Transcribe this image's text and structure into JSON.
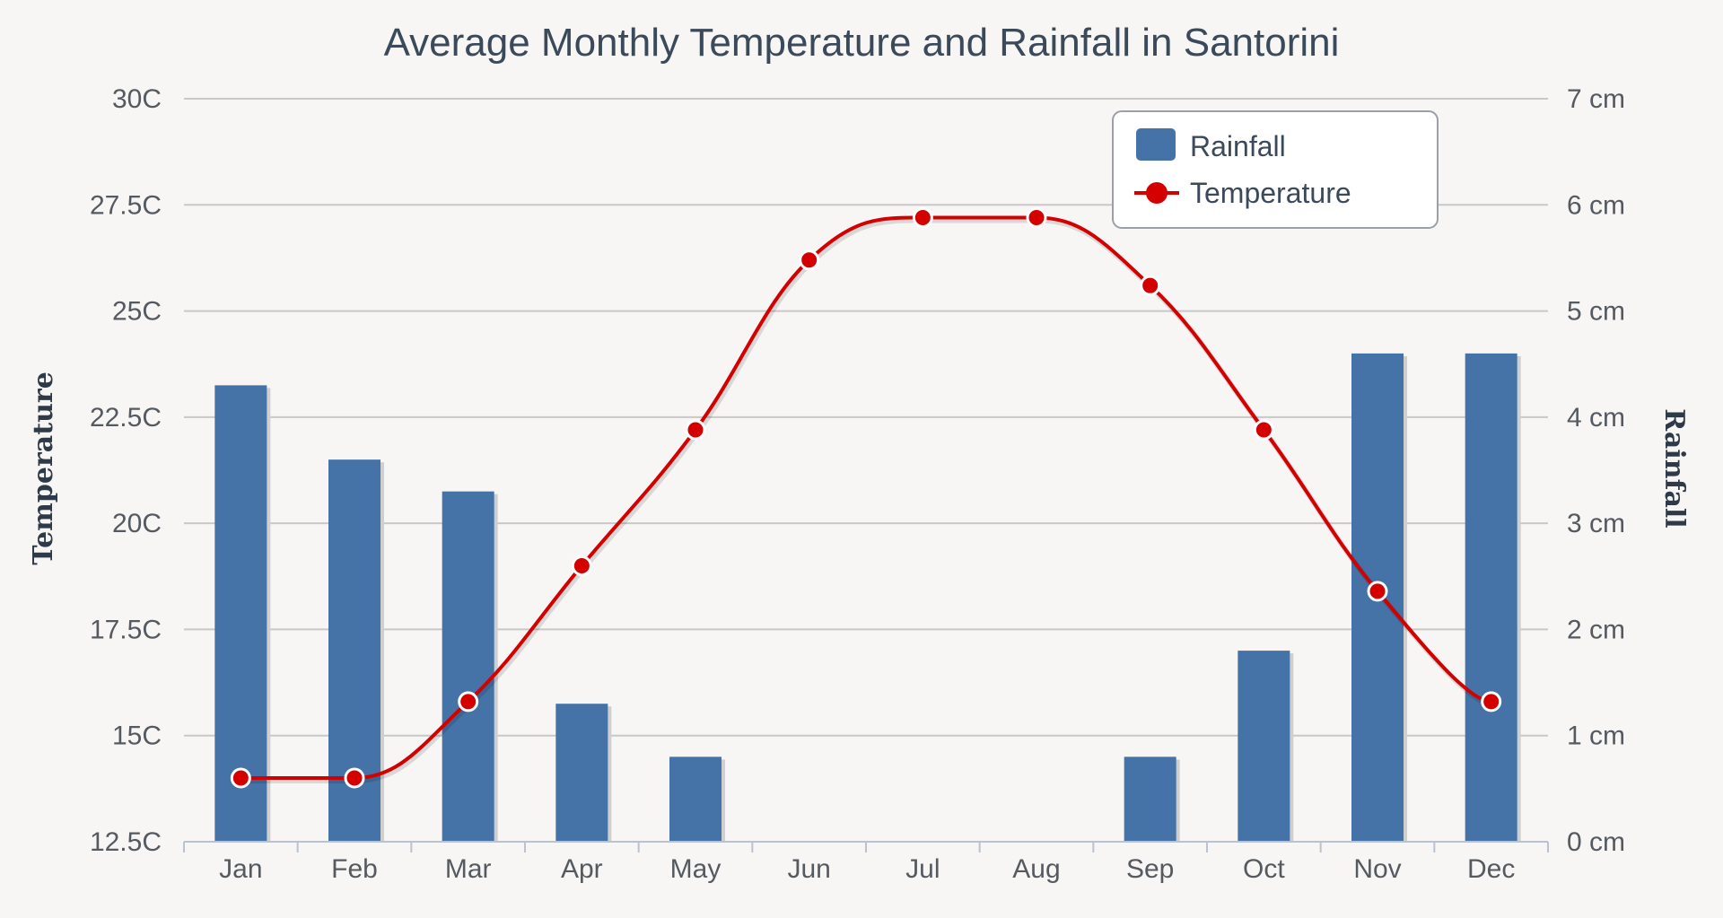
{
  "chart_data": {
    "type": "bar+line",
    "title": "Average Monthly Temperature and Rainfall in Santorini",
    "categories": [
      "Jan",
      "Feb",
      "Mar",
      "Apr",
      "May",
      "Jun",
      "Jul",
      "Aug",
      "Sep",
      "Oct",
      "Nov",
      "Dec"
    ],
    "series": [
      {
        "name": "Rainfall",
        "type": "bar",
        "axis": "right",
        "color": "#4572a7",
        "values": [
          4.3,
          3.6,
          3.3,
          1.3,
          0.8,
          0,
          0,
          0,
          0.8,
          1.8,
          4.6,
          4.6
        ]
      },
      {
        "name": "Temperature",
        "type": "line",
        "axis": "left",
        "color": "#d40000",
        "values": [
          14,
          14,
          15.8,
          19,
          22.2,
          26.2,
          27.2,
          27.2,
          25.6,
          22.2,
          18.4,
          15.8
        ]
      }
    ],
    "y_left": {
      "label": "Temperature",
      "min": 12.5,
      "max": 30,
      "ticks": [
        "12.5C",
        "15C",
        "17.5C",
        "20C",
        "22.5C",
        "25C",
        "27.5C",
        "30C"
      ]
    },
    "y_right": {
      "label": "Rainfall",
      "min": 0,
      "max": 7,
      "ticks": [
        "0 cm",
        "1 cm",
        "2 cm",
        "3 cm",
        "4 cm",
        "5 cm",
        "6 cm",
        "7 cm"
      ]
    },
    "grid": true,
    "legend": {
      "position": "top-right",
      "items": [
        "Rainfall",
        "Temperature"
      ]
    }
  }
}
